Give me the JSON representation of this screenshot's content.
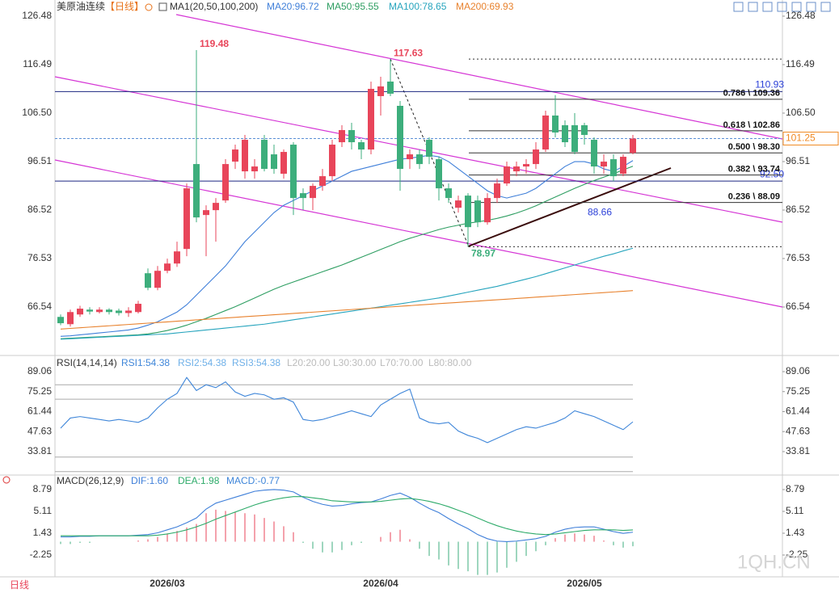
{
  "chart_data": {
    "type": "candlestick",
    "title": "美原油连续",
    "period": "【日线】",
    "ma_label": "MA1(20,50,100,200)",
    "tab": "日线",
    "watermark": "1QH.CN",
    "up_color": "#e8455a",
    "down_color": "#3dae7c",
    "categories": [
      null,
      null,
      null,
      null,
      null,
      null,
      null,
      null,
      null,
      null,
      null,
      "2026/03",
      null,
      null,
      null,
      null,
      null,
      null,
      null,
      null,
      null,
      null,
      null,
      null,
      null,
      null,
      null,
      null,
      null,
      null,
      null,
      null,
      null,
      "2026/04",
      null,
      null,
      null,
      null,
      null,
      null,
      null,
      null,
      null,
      null,
      null,
      null,
      null,
      null,
      null,
      null,
      null,
      null,
      null,
      null,
      "2026/05",
      null,
      null,
      null,
      null,
      null
    ],
    "open": [
      64.5,
      63,
      65,
      66,
      65.5,
      66,
      65.8,
      65.3,
      65.5,
      73.5,
      70.5,
      74,
      75.5,
      78.5,
      96,
      85.5,
      86.5,
      88.5,
      96.5,
      94.5,
      94.5,
      101,
      98,
      94,
      100,
      90,
      89,
      91.5,
      93.5,
      100.5,
      103,
      100.5,
      99,
      110,
      113,
      108,
      97,
      98,
      101,
      97,
      91,
      87,
      89.5,
      88.5,
      84,
      89,
      92,
      94.5,
      95.5,
      96,
      99,
      106,
      104,
      104,
      104,
      101,
      95.5,
      97,
      94,
      98.3
    ],
    "high": [
      65,
      66,
      66.8,
      66.5,
      66.5,
      66.3,
      66.2,
      66.5,
      67.8,
      74.5,
      75,
      76.5,
      80,
      92,
      119.48,
      87.5,
      89,
      97,
      100,
      102,
      97,
      102,
      100,
      99,
      100.5,
      91,
      92,
      95,
      101,
      104,
      104.5,
      101,
      113,
      114,
      117.63,
      109,
      99,
      99,
      101.5,
      97.5,
      92,
      89.5,
      90,
      89.5,
      90,
      93,
      96.5,
      96.5,
      97,
      100.5,
      107,
      110.2,
      105,
      106.5,
      104.5,
      101.5,
      98,
      98,
      98,
      102
    ],
    "low": [
      62.8,
      62.5,
      64.5,
      65,
      65.2,
      65,
      64.8,
      64.5,
      65.2,
      70,
      70,
      73.5,
      74.8,
      77,
      84,
      77,
      80,
      88,
      95,
      93,
      93,
      94.5,
      94,
      93,
      85.5,
      86.5,
      86.5,
      90.5,
      92.5,
      99.5,
      99,
      97,
      98,
      106,
      110,
      90.5,
      95,
      95,
      96,
      88.5,
      88,
      86,
      78.97,
      83,
      83.5,
      88,
      91.5,
      93.5,
      94,
      95,
      98.5,
      101.5,
      99.5,
      98,
      100,
      94,
      94,
      92.5,
      93.5,
      98
    ],
    "close": [
      63.2,
      65.5,
      66.2,
      65.6,
      66,
      65.5,
      65.3,
      65.8,
      67.2,
      70.5,
      74,
      75.5,
      78,
      91,
      85,
      86.5,
      88,
      96,
      99,
      101,
      95.5,
      95,
      95,
      98.5,
      89,
      89,
      91.5,
      93.5,
      100,
      103,
      100.5,
      99,
      111.5,
      112,
      110.5,
      95,
      98,
      96,
      97.5,
      91,
      89,
      88.5,
      83,
      84,
      89,
      92,
      95.5,
      95.5,
      96,
      99,
      106,
      102.5,
      100.5,
      98.5,
      102,
      95.5,
      96.5,
      93.5,
      97.5,
      101.25
    ],
    "ylim": [
      56.55,
      129.81
    ],
    "yticks": [
      126.48,
      116.49,
      {
        "value": 106.5,
        "label": "106.50"
      },
      96.51,
      86.52,
      76.53,
      66.54
    ],
    "series": [
      {
        "name": "MA20:96.72",
        "color": "#3f7fd9",
        "values": [
          60.5,
          60.6,
          60.8,
          61,
          61.2,
          61.4,
          61.6,
          61.8,
          62.2,
          62.8,
          63.5,
          64.5,
          65.5,
          67,
          69,
          71,
          73,
          75,
          77.5,
          80,
          82,
          84,
          86,
          87.5,
          88.5,
          89.5,
          90.5,
          91.5,
          92.5,
          93.5,
          94.5,
          95,
          95.5,
          96,
          96.5,
          97,
          97.2,
          97.5,
          97.8,
          97.5,
          96.5,
          95,
          93.5,
          92,
          90.5,
          89.5,
          89,
          89.5,
          90,
          91,
          92.5,
          94,
          95.5,
          96.5,
          96.5,
          96,
          95,
          94.5,
          95.5,
          96.72
        ]
      },
      {
        "name": "MA50:95.55",
        "color": "#2e9e62",
        "values": [
          60,
          60.1,
          60.2,
          60.3,
          60.4,
          60.5,
          60.6,
          60.7,
          60.8,
          61,
          61.3,
          61.7,
          62.2,
          62.8,
          63.5,
          64.2,
          65,
          65.8,
          66.6,
          67.5,
          68.4,
          69.3,
          70.2,
          71,
          71.7,
          72.4,
          73.1,
          73.8,
          74.5,
          75.2,
          76,
          76.8,
          77.6,
          78.4,
          79.2,
          80,
          80.7,
          81.3,
          81.9,
          82.5,
          83,
          83.4,
          83.8,
          84.1,
          84.4,
          84.8,
          85.3,
          85.9,
          86.6,
          87.4,
          88.3,
          89.2,
          90.1,
          91,
          91.8,
          92.6,
          93.3,
          94,
          94.8,
          95.55
        ]
      },
      {
        "name": "MA100:78.65",
        "color": "#26a4bd",
        "values": [
          59.9,
          60,
          60.1,
          60.2,
          60.3,
          60.4,
          60.5,
          60.6,
          60.7,
          60.8,
          60.9,
          61,
          61.2,
          61.4,
          61.6,
          61.8,
          62,
          62.2,
          62.4,
          62.6,
          62.8,
          63,
          63.3,
          63.6,
          63.9,
          64.2,
          64.5,
          64.8,
          65.1,
          65.4,
          65.7,
          66,
          66.3,
          66.6,
          66.9,
          67.2,
          67.5,
          67.8,
          68.1,
          68.4,
          68.8,
          69.2,
          69.6,
          70,
          70.4,
          70.8,
          71.3,
          71.8,
          72.3,
          72.8,
          73.4,
          74,
          74.6,
          75.2,
          75.8,
          76.4,
          77,
          77.5,
          78.1,
          78.65
        ]
      },
      {
        "name": "MA200:69.93",
        "color": "#e8822e",
        "values": [
          62,
          62.13,
          62.27,
          62.4,
          62.54,
          62.67,
          62.8,
          62.94,
          63.07,
          63.21,
          63.34,
          63.47,
          63.61,
          63.74,
          63.88,
          64.01,
          64.14,
          64.28,
          64.41,
          64.55,
          64.68,
          64.81,
          64.95,
          65.08,
          65.22,
          65.35,
          65.48,
          65.62,
          65.75,
          65.89,
          66.02,
          66.15,
          66.29,
          66.42,
          66.56,
          66.69,
          66.82,
          66.96,
          67.09,
          67.23,
          67.36,
          67.49,
          67.63,
          67.76,
          67.9,
          68.03,
          68.16,
          68.3,
          68.43,
          68.57,
          68.7,
          68.83,
          68.97,
          69.1,
          69.24,
          69.37,
          69.5,
          69.64,
          69.77,
          69.93
        ]
      }
    ],
    "levels": [
      {
        "label": "0.786 \\ 109.36",
        "value": 109.36
      },
      {
        "label": "0.618 \\ 102.86",
        "value": 102.86
      },
      {
        "label": "0.500 \\ 98.30",
        "value": 98.3
      },
      {
        "label": "0.382 \\ 93.74",
        "value": 93.74
      },
      {
        "label": "0.236 \\ 88.09",
        "value": 88.09
      }
    ],
    "annotations": [
      {
        "value": 119.48
      },
      {
        "value": 117.63,
        "guide": true
      },
      {
        "value": 78.97,
        "guide": true
      }
    ],
    "hlines": [
      110.93,
      {
        "value": 92.5,
        "label": "92.50"
      }
    ],
    "trendline_label": 88.66,
    "last_price": 101.25,
    "rsi": {
      "title": "RSI(14,14,14)",
      "legend": [
        {
          "name": "RSI1:54.38",
          "color": "#3f86d9"
        },
        {
          "name": "RSI2:54.38",
          "color": "#6fb0e8"
        },
        {
          "name": "RSI3:54.38",
          "color": "#6fb0e8"
        }
      ],
      "color": "#3f86d9",
      "values": [
        50,
        57,
        58,
        57,
        56,
        55,
        56,
        55,
        54,
        57,
        64,
        70,
        74,
        85,
        76,
        80,
        78,
        82,
        75,
        72,
        74,
        73,
        70,
        71,
        68,
        56,
        55,
        56,
        58,
        60,
        62,
        60,
        58,
        66,
        70,
        74,
        77,
        57,
        54,
        53,
        54,
        48,
        45,
        43,
        40,
        43,
        46,
        49,
        51,
        50,
        52,
        54,
        57,
        62,
        60,
        58,
        55,
        52,
        49,
        54.38
      ],
      "levels": [
        {
          "label": "L20:20.00",
          "value": 20
        },
        {
          "label": "L30:30.00",
          "value": 30
        },
        {
          "label": "L70:70.00",
          "value": 70
        },
        {
          "label": "L80:80.00",
          "value": 80
        }
      ],
      "ylim": [
        16.5,
        99.1
      ],
      "yticks": [
        89.06,
        75.25,
        61.44,
        47.63,
        33.81
      ]
    },
    "macd": {
      "title": "MACD(26,12,9)",
      "dif": {
        "name": "DIF:1.60",
        "color": "#3f7fd9",
        "values": [
          0.8,
          0.8,
          0.9,
          0.9,
          1,
          1,
          1,
          1,
          1.1,
          1.2,
          1.5,
          2,
          2.5,
          3.2,
          4,
          5.5,
          6.5,
          7,
          7.5,
          8,
          8.5,
          8.7,
          8.8,
          8.7,
          8.4,
          7.5,
          6.8,
          6.3,
          6,
          6.1,
          6.4,
          6.6,
          6.7,
          7.2,
          7.8,
          8.2,
          7.5,
          6.5,
          5.6,
          4.9,
          3.9,
          3,
          2.2,
          1.2,
          0.5,
          0.1,
          0,
          0.1,
          0.3,
          0.5,
          0.9,
          1.6,
          2.1,
          2.4,
          2.5,
          2.5,
          2.1,
          1.7,
          1.4,
          1.6
        ]
      },
      "dea": {
        "name": "DEA:1.98",
        "color": "#2eab6a",
        "values": [
          1,
          1,
          1,
          1,
          1,
          1,
          1,
          1,
          1,
          1,
          1.1,
          1.3,
          1.6,
          2,
          2.5,
          3.1,
          3.8,
          4.4,
          5,
          5.6,
          6.2,
          6.7,
          7.1,
          7.4,
          7.6,
          7.6,
          7.4,
          7.2,
          6.9,
          6.8,
          6.7,
          6.7,
          6.7,
          6.8,
          7,
          7.2,
          7.3,
          7.1,
          6.8,
          6.4,
          5.9,
          5.3,
          4.7,
          4,
          3.3,
          2.7,
          2.2,
          1.8,
          1.5,
          1.3,
          1.2,
          1.3,
          1.5,
          1.7,
          1.9,
          2,
          2,
          2,
          1.9,
          1.98
        ]
      },
      "hist": {
        "name": "MACD:-0.77",
        "color": "#3f86d9",
        "values": [
          -0.4,
          -0.4,
          -0.2,
          -0.2,
          0,
          0,
          0,
          0,
          0.2,
          0.4,
          0.8,
          1.4,
          1.8,
          2.4,
          3,
          4.8,
          5.4,
          5.2,
          5,
          4.8,
          4.6,
          4,
          3.4,
          2.6,
          1.6,
          -0.2,
          -1.2,
          -1.8,
          -1.8,
          -1.4,
          -0.6,
          -0.2,
          0,
          0.8,
          1.6,
          2,
          0.4,
          -1.2,
          -2.4,
          -3,
          -4,
          -4.6,
          -5,
          -5.6,
          -5.6,
          -5.2,
          -4.4,
          -3.4,
          -2.4,
          -1.6,
          -0.6,
          0.6,
          1.2,
          1.4,
          1.2,
          1,
          0.2,
          -0.6,
          -1,
          -0.77
        ]
      },
      "ylim": [
        -6.34,
        10.97
      ],
      "yticks": [
        8.79,
        5.11,
        1.43,
        -2.25
      ]
    }
  }
}
